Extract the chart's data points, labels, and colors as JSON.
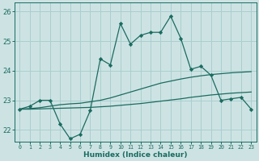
{
  "xlabel": "Humidex (Indice chaleur)",
  "xlim": [
    -0.5,
    23.5
  ],
  "ylim": [
    21.6,
    26.3
  ],
  "yticks": [
    22,
    23,
    24,
    25,
    26
  ],
  "xticks": [
    0,
    1,
    2,
    3,
    4,
    5,
    6,
    7,
    8,
    9,
    10,
    11,
    12,
    13,
    14,
    15,
    16,
    17,
    18,
    19,
    20,
    21,
    22,
    23
  ],
  "bg_color": "#cde3e3",
  "grid_color": "#aacece",
  "line_color": "#1a6b60",
  "series1_x": [
    0,
    1,
    2,
    3,
    4,
    5,
    6,
    7,
    8,
    9,
    10,
    11,
    12,
    13,
    14,
    15,
    16,
    17,
    18,
    19,
    20,
    21,
    22,
    23
  ],
  "series1_y": [
    22.7,
    22.8,
    23.0,
    23.0,
    22.2,
    21.7,
    21.85,
    22.65,
    24.4,
    24.2,
    25.6,
    24.9,
    25.2,
    25.3,
    25.3,
    25.85,
    25.1,
    24.05,
    24.15,
    23.85,
    23.0,
    23.05,
    23.1,
    22.7
  ],
  "series2_x": [
    0,
    1,
    2,
    3,
    4,
    5,
    6,
    7,
    8,
    9,
    10,
    11,
    12,
    13,
    14,
    15,
    16,
    17,
    18,
    19,
    20,
    21,
    22,
    23
  ],
  "series2_y": [
    22.7,
    22.72,
    22.75,
    22.8,
    22.85,
    22.88,
    22.9,
    22.95,
    23.0,
    23.08,
    23.18,
    23.28,
    23.38,
    23.48,
    23.58,
    23.65,
    23.72,
    23.78,
    23.83,
    23.87,
    23.9,
    23.93,
    23.95,
    23.97
  ],
  "series3_x": [
    0,
    1,
    2,
    3,
    4,
    5,
    6,
    7,
    8,
    9,
    10,
    11,
    12,
    13,
    14,
    15,
    16,
    17,
    18,
    19,
    20,
    21,
    22,
    23
  ],
  "series3_y": [
    22.7,
    22.7,
    22.71,
    22.72,
    22.73,
    22.74,
    22.75,
    22.76,
    22.78,
    22.8,
    22.83,
    22.86,
    22.89,
    22.93,
    22.97,
    23.01,
    23.05,
    23.1,
    23.14,
    23.18,
    23.21,
    23.24,
    23.26,
    23.28
  ]
}
